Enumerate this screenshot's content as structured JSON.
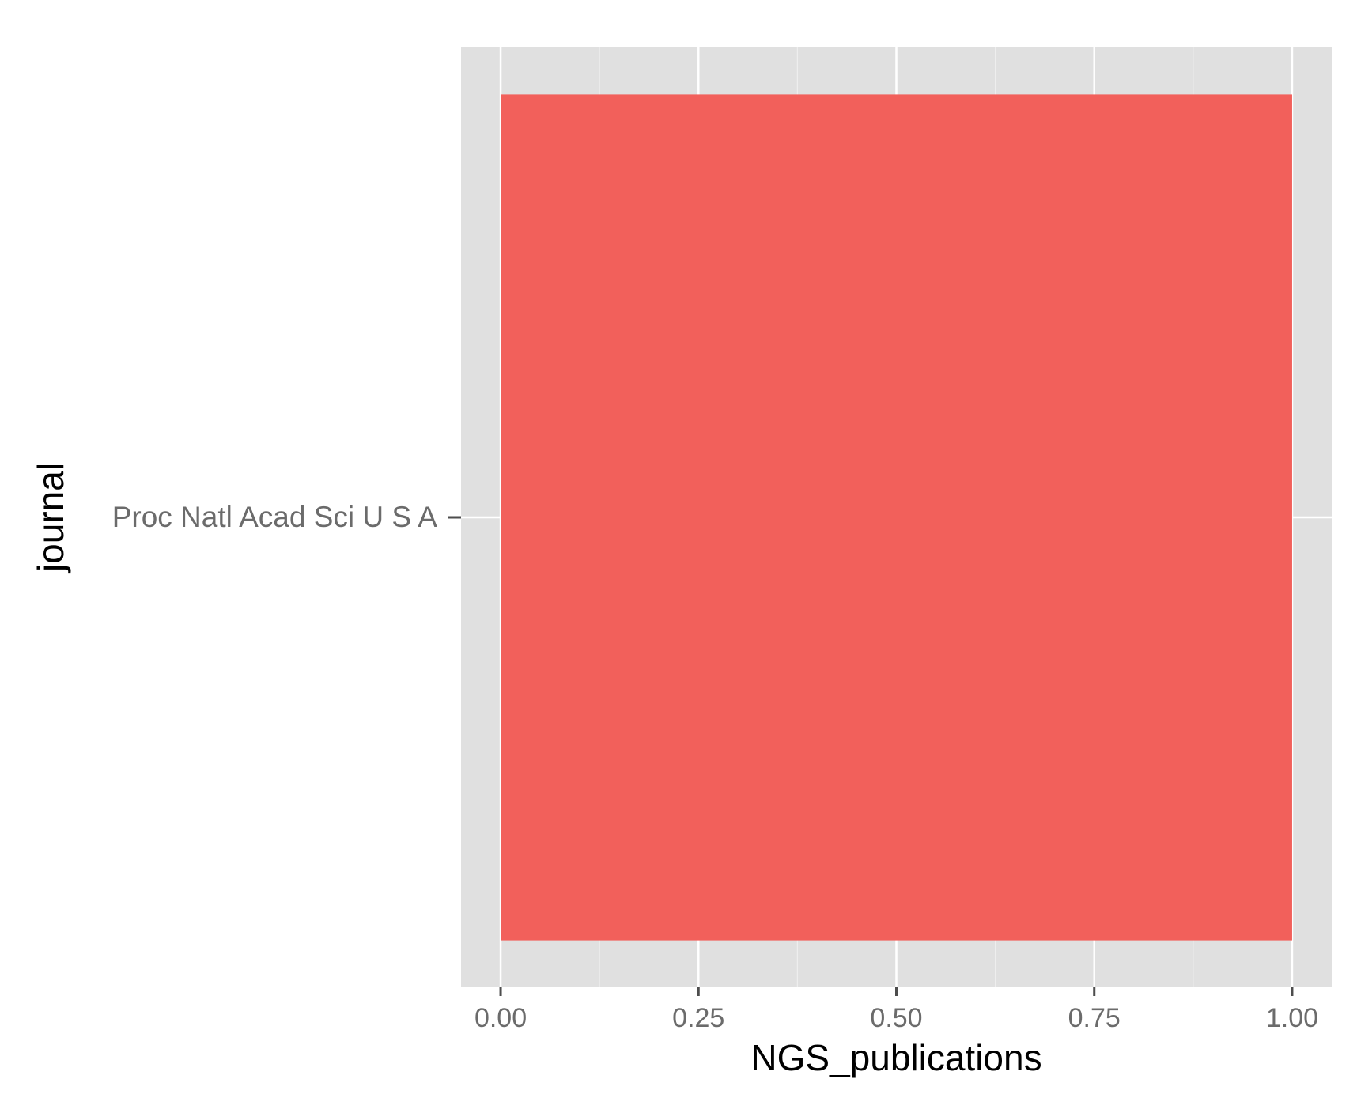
{
  "chart_data": {
    "type": "bar",
    "orientation": "horizontal",
    "categories": [
      "Proc Natl Acad Sci U S A"
    ],
    "values": [
      1.0
    ],
    "title": "",
    "xlabel": "NGS_publications",
    "ylabel": "journal",
    "xlim": [
      -0.05,
      1.05
    ],
    "xticks": [
      0.0,
      0.25,
      0.5,
      0.75,
      1.0
    ],
    "xtick_labels": [
      "0.00",
      "0.25",
      "0.50",
      "0.75",
      "1.00"
    ],
    "grid": true,
    "legend": "none",
    "colors": {
      "bar": "#F2605B",
      "panel_background": "#E0E0E0",
      "grid_major": "#FFFFFF",
      "grid_minor": "#EEEEEE",
      "tick_label": "#6B6B6B",
      "axis_title": "#000000"
    }
  }
}
